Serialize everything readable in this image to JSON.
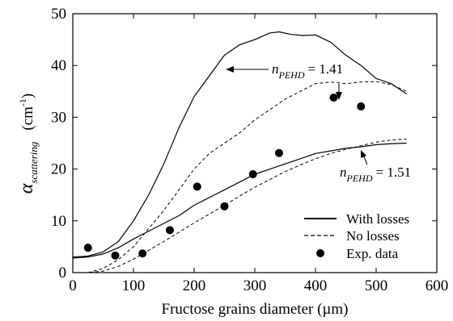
{
  "chart_data": {
    "type": "line",
    "xlabel": "Fructose grains diameter (µm)",
    "ylabel": {
      "main": "α",
      "sub": "scattering",
      "unit_pre": "(cm",
      "unit_sup": "-1",
      "unit_post": ")"
    },
    "xlim": [
      0,
      600
    ],
    "ylim": [
      0,
      50
    ],
    "xticks": [
      "0",
      "100",
      "200",
      "300",
      "400",
      "500",
      "600"
    ],
    "yticks": [
      "0",
      "10",
      "20",
      "30",
      "40",
      "50"
    ],
    "grid": false,
    "legend_position": "bottom-right",
    "legend": {
      "with_losses": "With losses",
      "no_losses": "No losses",
      "exp_data": "Exp. data"
    },
    "annotations": {
      "upper": {
        "n": "n",
        "sub": "PEHD",
        "value": "= 1.41"
      },
      "lower": {
        "n": "n",
        "sub": "PEHD",
        "value": "= 1.51"
      }
    },
    "series": [
      {
        "style": "solid",
        "group": "upper",
        "x": [
          0,
          25,
          50,
          75,
          100,
          125,
          150,
          175,
          200,
          225,
          250,
          275,
          300,
          325,
          340,
          360,
          380,
          400,
          425,
          450,
          475,
          500,
          525,
          550
        ],
        "y": [
          3,
          3.2,
          4,
          6,
          10,
          15,
          21,
          28,
          34,
          38,
          42,
          44,
          45,
          46.3,
          46.5,
          46,
          45.8,
          45.9,
          44.5,
          42,
          40,
          37.5,
          36.5,
          34.5
        ]
      },
      {
        "style": "dashed",
        "group": "upper",
        "x": [
          25,
          50,
          75,
          100,
          125,
          150,
          175,
          200,
          225,
          250,
          275,
          300,
          325,
          350,
          375,
          400,
          425,
          450,
          475,
          500,
          525,
          550
        ],
        "y": [
          0,
          0.8,
          2.5,
          5,
          8.5,
          12,
          16,
          20,
          23,
          25,
          27,
          29.5,
          31.5,
          33.5,
          35,
          36.5,
          36.8,
          36.5,
          36.8,
          36.9,
          36.3,
          35
        ]
      },
      {
        "style": "solid",
        "group": "lower",
        "x": [
          0,
          25,
          50,
          75,
          100,
          125,
          150,
          175,
          200,
          225,
          250,
          275,
          300,
          325,
          350,
          375,
          400,
          425,
          450,
          475,
          500,
          525,
          550
        ],
        "y": [
          2.8,
          3,
          3.6,
          4.8,
          6.5,
          8,
          9.5,
          11,
          13,
          14.5,
          16,
          17.5,
          19,
          20,
          21,
          22,
          23,
          23.5,
          24,
          24.3,
          24.7,
          24.9,
          25
        ]
      },
      {
        "style": "dashed",
        "group": "lower",
        "x": [
          0,
          25,
          50,
          75,
          100,
          125,
          150,
          175,
          200,
          225,
          250,
          275,
          300,
          325,
          350,
          375,
          400,
          425,
          450,
          475,
          500,
          525,
          550
        ],
        "y": [
          0,
          0,
          0.3,
          1.2,
          2.6,
          4.3,
          6,
          7.8,
          9.6,
          11.3,
          13,
          14.8,
          16.5,
          18,
          19.5,
          20.8,
          22,
          23,
          23.8,
          24.5,
          25.2,
          25.6,
          25.8
        ]
      }
    ],
    "points": [
      {
        "x": 25,
        "y": 4.8
      },
      {
        "x": 70,
        "y": 3.3
      },
      {
        "x": 115,
        "y": 3.7
      },
      {
        "x": 160,
        "y": 8.2
      },
      {
        "x": 205,
        "y": 16.6
      },
      {
        "x": 250,
        "y": 12.8
      },
      {
        "x": 297,
        "y": 19
      },
      {
        "x": 340,
        "y": 23.1
      },
      {
        "x": 430,
        "y": 33.8
      },
      {
        "x": 475,
        "y": 32.1
      }
    ]
  }
}
